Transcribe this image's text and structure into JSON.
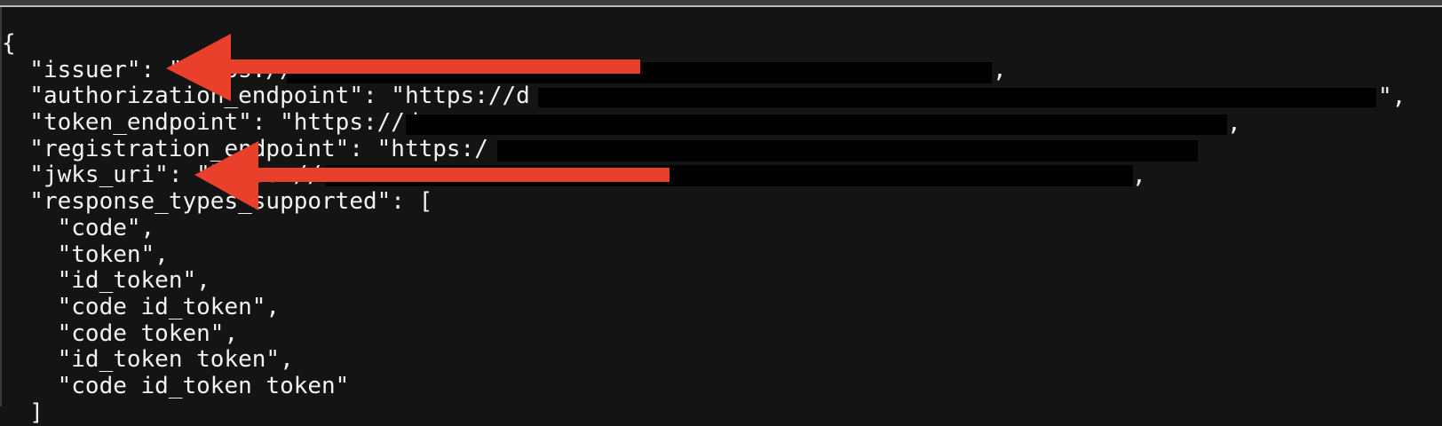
{
  "terminal": {
    "lines": [
      "{",
      "  \"issuer\": \"https://",
      "  \"authorization_endpoint\": \"https://d",
      "  \"token_endpoint\": \"https://d",
      "  \"registration_endpoint\": \"https:/",
      "  \"jwks_uri\": \"https://",
      "  \"response_types_supported\": [",
      "    \"code\",",
      "    \"token\",",
      "    \"id_token\",",
      "    \"code id_token\",",
      "    \"code token\",",
      "    \"id_token token\",",
      "    \"code id_token token\"",
      "  ]"
    ],
    "line_endings": {
      "issuer": ",",
      "authorization_endpoint": "\",",
      "token_endpoint": ",",
      "jwks_uri": ","
    }
  },
  "annotations": {
    "arrow_color": "#e8402a",
    "arrows": [
      "issuer",
      "jwks_uri"
    ]
  },
  "redaction_color": "#000000",
  "background_color": "#141414"
}
